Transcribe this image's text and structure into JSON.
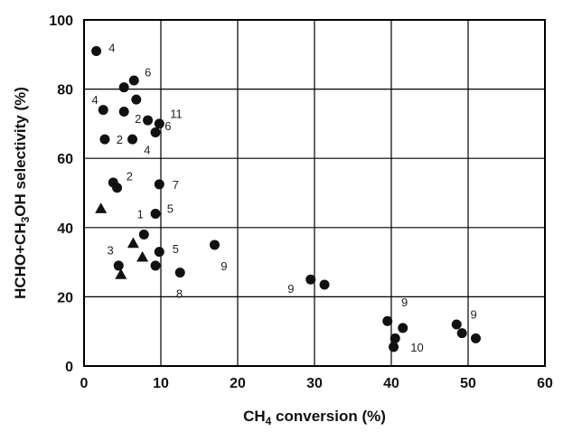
{
  "chart_data": {
    "type": "scatter",
    "title": "",
    "xlabel_main": "CH",
    "xlabel_sub": "4",
    "xlabel_rest": " conversion (%)",
    "ylabel_pre": "HCHO+CH",
    "ylabel_sub": "3",
    "ylabel_post": "OH selectivity (%)",
    "xlim": [
      0,
      60
    ],
    "ylim": [
      0,
      100
    ],
    "x_ticks": [
      0,
      10,
      20,
      30,
      40,
      50,
      60
    ],
    "y_ticks": [
      0,
      20,
      40,
      60,
      80,
      100
    ],
    "grid": true,
    "legend": "none",
    "series": [
      {
        "marker": "circle",
        "points": [
          {
            "x": 1.6,
            "y": 91
          },
          {
            "x": 5.2,
            "y": 80.5
          },
          {
            "x": 6.5,
            "y": 82.5
          },
          {
            "x": 6.8,
            "y": 77
          },
          {
            "x": 2.5,
            "y": 74
          },
          {
            "x": 5.2,
            "y": 73.5
          },
          {
            "x": 8.3,
            "y": 71
          },
          {
            "x": 9.8,
            "y": 70
          },
          {
            "x": 9.3,
            "y": 67.5
          },
          {
            "x": 2.7,
            "y": 65.5
          },
          {
            "x": 6.3,
            "y": 65.5
          },
          {
            "x": 3.8,
            "y": 53
          },
          {
            "x": 4.3,
            "y": 51.5
          },
          {
            "x": 9.8,
            "y": 52.5
          },
          {
            "x": 9.3,
            "y": 44
          },
          {
            "x": 7.8,
            "y": 38
          },
          {
            "x": 9.8,
            "y": 33
          },
          {
            "x": 4.5,
            "y": 29
          },
          {
            "x": 9.3,
            "y": 29
          },
          {
            "x": 12.5,
            "y": 27
          },
          {
            "x": 17,
            "y": 35
          },
          {
            "x": 29.5,
            "y": 25
          },
          {
            "x": 31.3,
            "y": 23.5
          },
          {
            "x": 39.5,
            "y": 13
          },
          {
            "x": 40.5,
            "y": 8
          },
          {
            "x": 40.3,
            "y": 5.5
          },
          {
            "x": 41.5,
            "y": 11
          },
          {
            "x": 48.5,
            "y": 12
          },
          {
            "x": 49.2,
            "y": 9.5
          },
          {
            "x": 51,
            "y": 8
          }
        ]
      },
      {
        "marker": "triangle",
        "points": [
          {
            "x": 2.2,
            "y": 45.5
          },
          {
            "x": 6.4,
            "y": 35.5
          },
          {
            "x": 7.6,
            "y": 31.5
          },
          {
            "x": 4.8,
            "y": 26.5
          }
        ]
      }
    ],
    "annotations": [
      {
        "text": "4",
        "x": 3.2,
        "y": 92
      },
      {
        "text": "6",
        "x": 7.9,
        "y": 85
      },
      {
        "text": "4",
        "x": 1.0,
        "y": 77
      },
      {
        "text": "2",
        "x": 6.6,
        "y": 71.5
      },
      {
        "text": "11",
        "x": 11.2,
        "y": 73
      },
      {
        "text": "6",
        "x": 10.5,
        "y": 69.5
      },
      {
        "text": "2",
        "x": 4.2,
        "y": 65.5
      },
      {
        "text": "4",
        "x": 7.8,
        "y": 62.5
      },
      {
        "text": "2",
        "x": 5.5,
        "y": 55
      },
      {
        "text": "7",
        "x": 11.5,
        "y": 52.5
      },
      {
        "text": "1",
        "x": 6.9,
        "y": 44
      },
      {
        "text": "5",
        "x": 10.8,
        "y": 45.5
      },
      {
        "text": "3",
        "x": 3.0,
        "y": 33.5
      },
      {
        "text": "5",
        "x": 11.5,
        "y": 34
      },
      {
        "text": "8",
        "x": 12.0,
        "y": 21
      },
      {
        "text": "9",
        "x": 17.8,
        "y": 29
      },
      {
        "text": "9",
        "x": 26.5,
        "y": 22.5
      },
      {
        "text": "9",
        "x": 41.3,
        "y": 18.5
      },
      {
        "text": "10",
        "x": 42.5,
        "y": 5.5
      },
      {
        "text": "9",
        "x": 50.3,
        "y": 15
      }
    ]
  }
}
